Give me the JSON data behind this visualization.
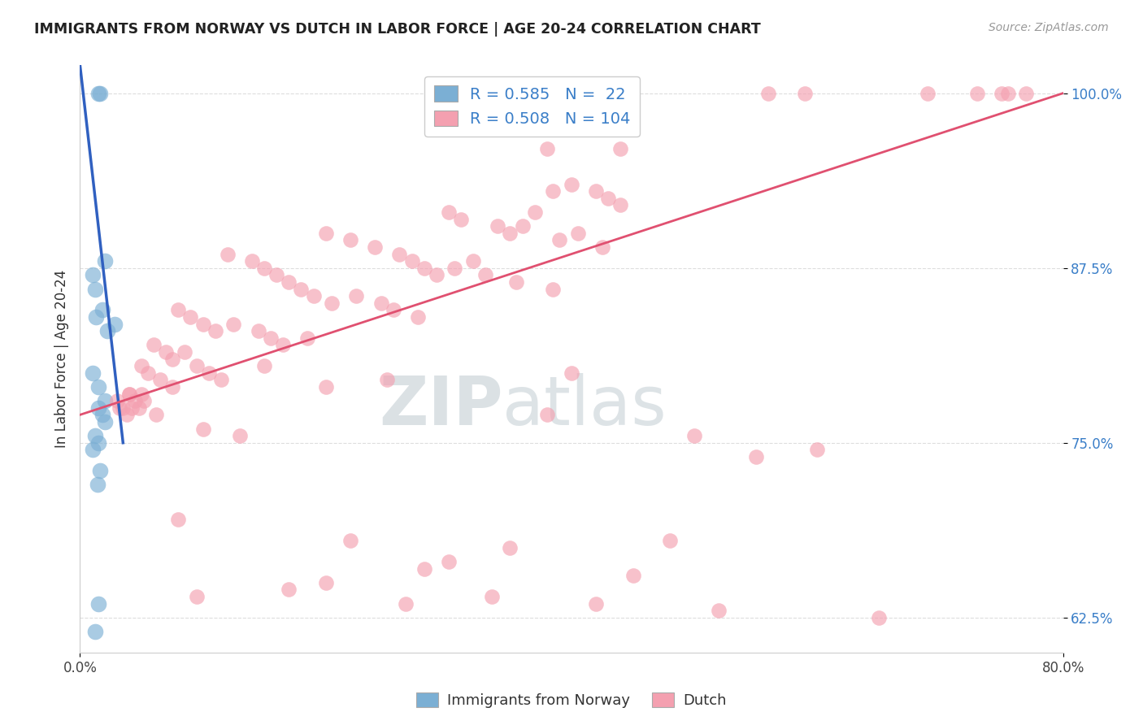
{
  "title": "IMMIGRANTS FROM NORWAY VS DUTCH IN LABOR FORCE | AGE 20-24 CORRELATION CHART",
  "source_text": "Source: ZipAtlas.com",
  "ylabel": "In Labor Force | Age 20-24",
  "xlim": [
    0.0,
    80.0
  ],
  "ylim": [
    60.0,
    102.0
  ],
  "ytick_positions": [
    62.5,
    75.0,
    87.5,
    100.0
  ],
  "ytick_labels": [
    "62.5%",
    "75.0%",
    "87.5%",
    "100.0%"
  ],
  "xtick_positions": [
    0.0,
    80.0
  ],
  "xtick_labels": [
    "0.0%",
    "80.0%"
  ],
  "blue_scatter_x": [
    1.5,
    1.6,
    2.0,
    1.0,
    1.2,
    1.3,
    1.8,
    2.2,
    2.8,
    1.0,
    1.5,
    2.0,
    1.5,
    1.8,
    2.0,
    1.2,
    1.5,
    1.0,
    1.5,
    1.2,
    1.4,
    1.6
  ],
  "blue_scatter_y": [
    100.0,
    100.0,
    88.0,
    87.0,
    86.0,
    84.0,
    84.5,
    83.0,
    83.5,
    80.0,
    79.0,
    78.0,
    77.5,
    77.0,
    76.5,
    75.5,
    75.0,
    74.5,
    63.5,
    61.5,
    72.0,
    73.0
  ],
  "pink_scatter_x": [
    56.0,
    59.0,
    69.0,
    73.0,
    75.0,
    75.5,
    77.0,
    38.0,
    44.0,
    38.5,
    40.0,
    42.0,
    43.0,
    44.0,
    30.0,
    31.0,
    34.0,
    35.0,
    36.0,
    37.0,
    39.0,
    40.5,
    42.5,
    20.0,
    22.0,
    24.0,
    26.0,
    27.0,
    28.0,
    29.0,
    30.5,
    32.0,
    33.0,
    35.5,
    38.5,
    12.0,
    14.0,
    15.0,
    16.0,
    17.0,
    18.0,
    19.0,
    20.5,
    22.5,
    24.5,
    25.5,
    27.5,
    8.0,
    9.0,
    10.0,
    11.0,
    12.5,
    14.5,
    15.5,
    16.5,
    18.5,
    6.0,
    7.0,
    7.5,
    8.5,
    9.5,
    10.5,
    5.0,
    5.5,
    6.5,
    7.5,
    11.5,
    4.0,
    4.5,
    4.8,
    5.2,
    6.2,
    3.5,
    3.8,
    4.2,
    40.0,
    15.0,
    20.0,
    25.0,
    5.0,
    3.0,
    4.0,
    3.2,
    10.0,
    38.0,
    50.0,
    55.0,
    13.0,
    60.0,
    8.0,
    22.0,
    30.0,
    35.0,
    28.0,
    45.0,
    20.0,
    17.0,
    9.5,
    26.5,
    33.5,
    42.0,
    52.0,
    65.0,
    48.0
  ],
  "pink_scatter_y": [
    100.0,
    100.0,
    100.0,
    100.0,
    100.0,
    100.0,
    100.0,
    96.0,
    96.0,
    93.0,
    93.5,
    93.0,
    92.5,
    92.0,
    91.5,
    91.0,
    90.5,
    90.0,
    90.5,
    91.5,
    89.5,
    90.0,
    89.0,
    90.0,
    89.5,
    89.0,
    88.5,
    88.0,
    87.5,
    87.0,
    87.5,
    88.0,
    87.0,
    86.5,
    86.0,
    88.5,
    88.0,
    87.5,
    87.0,
    86.5,
    86.0,
    85.5,
    85.0,
    85.5,
    85.0,
    84.5,
    84.0,
    84.5,
    84.0,
    83.5,
    83.0,
    83.5,
    83.0,
    82.5,
    82.0,
    82.5,
    82.0,
    81.5,
    81.0,
    81.5,
    80.5,
    80.0,
    80.5,
    80.0,
    79.5,
    79.0,
    79.5,
    78.5,
    78.0,
    77.5,
    78.0,
    77.0,
    77.5,
    77.0,
    77.5,
    80.0,
    80.5,
    79.0,
    79.5,
    78.5,
    78.0,
    78.5,
    77.5,
    76.0,
    77.0,
    75.5,
    74.0,
    75.5,
    74.5,
    69.5,
    68.0,
    66.5,
    67.5,
    66.0,
    65.5,
    65.0,
    64.5,
    64.0,
    63.5,
    64.0,
    63.5,
    63.0,
    62.5,
    68.0
  ],
  "blue_line_x": [
    0.0,
    3.5
  ],
  "blue_line_y": [
    102.0,
    75.0
  ],
  "pink_line_x": [
    0.0,
    80.0
  ],
  "pink_line_y": [
    77.0,
    100.0
  ],
  "blue_color": "#7bafd4",
  "pink_color": "#f4a0b0",
  "blue_line_color": "#3060c0",
  "pink_line_color": "#e05070",
  "watermark_zip": "ZIP",
  "watermark_atlas": "atlas",
  "background_color": "#ffffff",
  "grid_color": "#dddddd",
  "R_blue": "0.585",
  "N_blue": "22",
  "R_pink": "0.508",
  "N_pink": "104"
}
